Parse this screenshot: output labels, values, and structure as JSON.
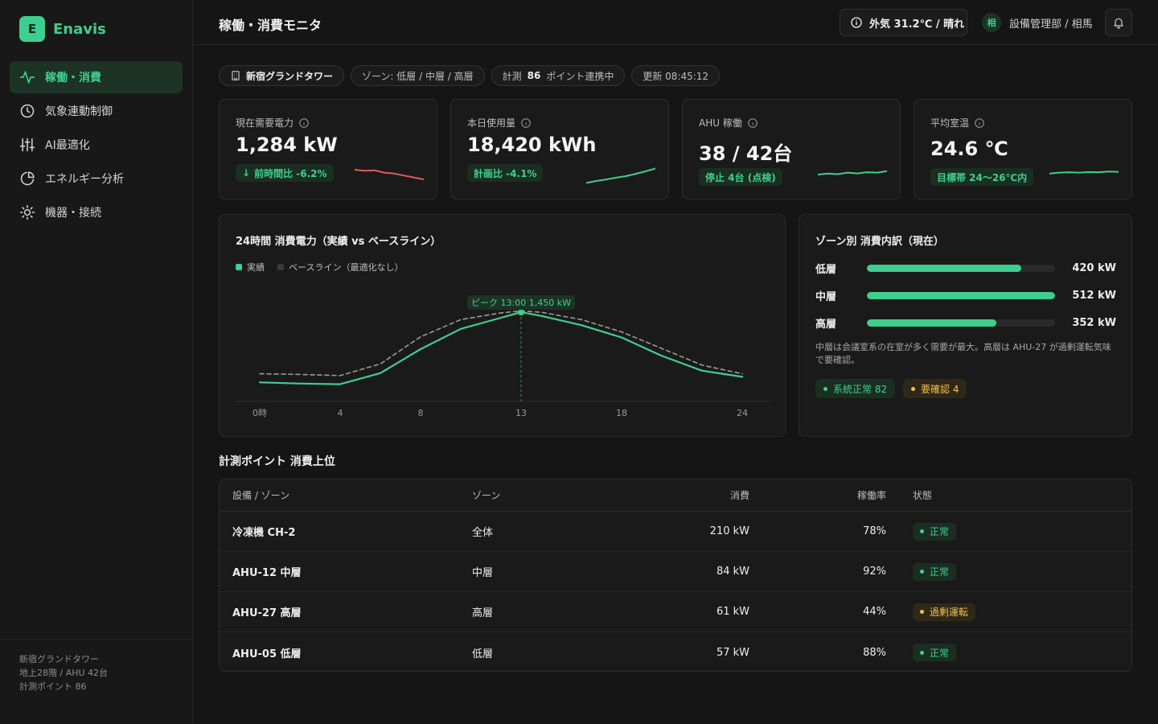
{
  "brand": {
    "logo_letter": "E",
    "name": "Enavis"
  },
  "nav": [
    {
      "label": "稼働・消費",
      "icon": "activity-icon",
      "active": true
    },
    {
      "label": "気象連動制御",
      "icon": "clock-icon",
      "active": false
    },
    {
      "label": "AI最適化",
      "icon": "sliders-icon",
      "active": false
    },
    {
      "label": "エネルギー分析",
      "icon": "pie-chart-icon",
      "active": false
    },
    {
      "label": "機器・接続",
      "icon": "sun-icon",
      "active": false
    }
  ],
  "sidebar_footer": {
    "line1": "新宿グランドタワー",
    "line2": "地上28階 / AHU 42台",
    "line3": "計測ポイント 86"
  },
  "header": {
    "title": "稼働・消費モニタ",
    "weather": "外気 31.2℃ / 晴れ",
    "user_initial": "相",
    "user_label": "設備管理部 / 相馬"
  },
  "chips": {
    "building": "新宿グランドタワー",
    "zones": "ゾーン: 低層 / 中層 / 高層",
    "points_prefix": "計測",
    "points_count": "86",
    "points_suffix": "ポイント連携中",
    "updated": "更新 08:45:12"
  },
  "kpis": [
    {
      "label": "現在需要電力",
      "value": "1,284 kW",
      "badge": "前時間比 -6.2%",
      "badge_arrow": "↓",
      "spark_color": "#e05a5a",
      "spark": [
        0.75,
        0.7,
        0.72,
        0.6,
        0.55,
        0.45,
        0.35,
        0.25
      ]
    },
    {
      "label": "本日使用量",
      "value": "18,420 kWh",
      "badge": "計画比 -4.1%",
      "badge_arrow": "",
      "spark_color": "#3ecf8e",
      "spark": [
        0.15,
        0.25,
        0.33,
        0.42,
        0.5,
        0.62,
        0.75,
        0.9
      ]
    },
    {
      "label": "AHU 稼働",
      "value": "38 / 42台",
      "badge": "停止 4台 (点検)",
      "badge_arrow": "",
      "spark_color": "#3ecf8e",
      "spark": [
        0.5,
        0.55,
        0.52,
        0.6,
        0.56,
        0.62,
        0.6,
        0.68
      ]
    },
    {
      "label": "平均室温",
      "value": "24.6 ℃",
      "badge": "目標帯 24〜26℃内",
      "badge_arrow": "",
      "spark_color": "#3ecf8e",
      "spark": [
        0.55,
        0.6,
        0.62,
        0.6,
        0.63,
        0.62,
        0.66,
        0.64
      ]
    }
  ],
  "chart": {
    "title": "24時間 消費電力（実績 vs ベースライン）",
    "legend_actual": "実績",
    "legend_baseline": "ベースライン（最適化なし）"
  },
  "chart_data": {
    "type": "line",
    "title": "24時間 消費電力（実績 vs ベースライン）",
    "xlim": [
      0,
      24
    ],
    "ylim": [
      0,
      1700
    ],
    "x_ticks": [
      0,
      4,
      8,
      13,
      18,
      24
    ],
    "x_tick_labels": [
      "0時",
      "4",
      "8",
      "13",
      "18",
      "24"
    ],
    "x": [
      0,
      2,
      4,
      6,
      8,
      10,
      12,
      13,
      14,
      16,
      18,
      20,
      22,
      24
    ],
    "series": [
      {
        "name": "実績",
        "color": "#3ecf8e",
        "dashed": false,
        "values": [
          310,
          290,
          280,
          460,
          850,
          1180,
          1360,
          1450,
          1390,
          1240,
          1040,
          740,
          500,
          400
        ]
      },
      {
        "name": "ベースライン（最適化なし）",
        "color": "#9a9a9a",
        "dashed": true,
        "values": [
          450,
          440,
          420,
          610,
          1050,
          1330,
          1440,
          1470,
          1450,
          1330,
          1130,
          860,
          590,
          450
        ]
      }
    ],
    "annotation": {
      "x": 13,
      "y": 1450,
      "label": "ピーク 13:00 1,450 kW"
    },
    "grid": false,
    "legend_position": "top-left"
  },
  "zones": {
    "title": "ゾーン別 消費内訳（現在）",
    "items": [
      {
        "name": "低層",
        "value": 420,
        "display": "420 kW"
      },
      {
        "name": "中層",
        "value": 512,
        "display": "512 kW"
      },
      {
        "name": "高層",
        "value": 352,
        "display": "352 kW"
      }
    ],
    "max": 512,
    "note": "中層は会議室系の在室が多く需要が最大。高層は AHU-27 が過剰運転気味で要確認。",
    "ok_pill": "系統正常 82",
    "warn_pill": "要確認 4"
  },
  "table": {
    "title": "計測ポイント 消費上位",
    "headers": {
      "name": "設備 / ゾーン",
      "zone": "ゾーン",
      "use": "消費",
      "rate": "稼働率",
      "status": "状態"
    },
    "rows": [
      {
        "name": "冷凍機 CH-2",
        "zone": "全体",
        "use": "210 kW",
        "rate": "78%",
        "status": "正常",
        "status_type": "ok"
      },
      {
        "name": "AHU-12 中層",
        "zone": "中層",
        "use": "84 kW",
        "rate": "92%",
        "status": "正常",
        "status_type": "ok"
      },
      {
        "name": "AHU-27 高層",
        "zone": "高層",
        "use": "61 kW",
        "rate": "44%",
        "status": "過剰運転",
        "status_type": "warn"
      },
      {
        "name": "AHU-05 低層",
        "zone": "低層",
        "use": "57 kW",
        "rate": "88%",
        "status": "正常",
        "status_type": "ok"
      }
    ]
  },
  "colors": {
    "accent": "#3ecf8e",
    "warn": "#f2c14e",
    "danger": "#e05a5a",
    "background": "#151515"
  }
}
